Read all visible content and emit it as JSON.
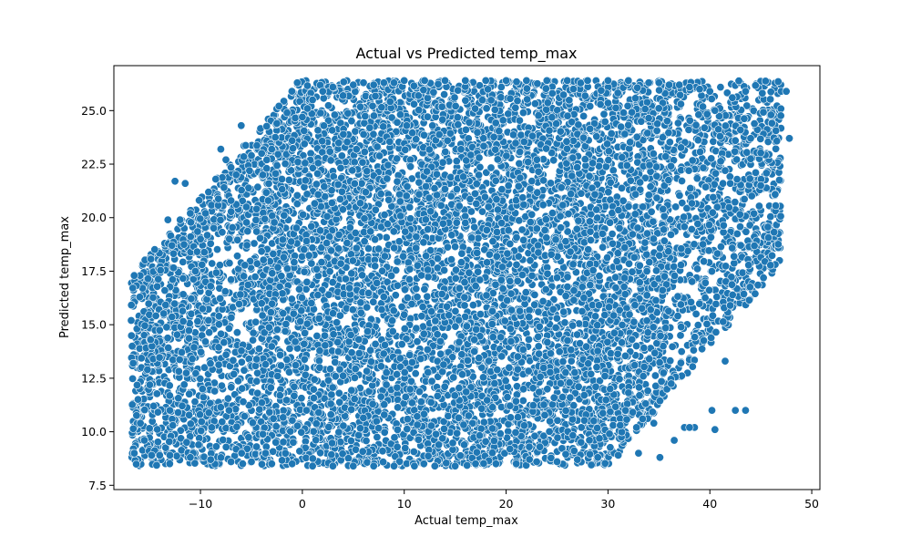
{
  "chart_data": {
    "type": "scatter",
    "title": "Actual vs Predicted temp_max",
    "xlabel": "Actual temp_max",
    "ylabel": "Predicted temp_max",
    "xlim": [
      -18.5,
      50.8
    ],
    "ylim": [
      7.3,
      27.1
    ],
    "xticks": [
      -10,
      0,
      10,
      20,
      30,
      40,
      50
    ],
    "yticks": [
      7.5,
      10.0,
      12.5,
      15.0,
      17.5,
      20.0,
      22.5,
      25.0
    ],
    "xtick_labels": [
      "−10",
      "0",
      "10",
      "20",
      "30",
      "40",
      "50"
    ],
    "ytick_labels": [
      "7.5",
      "10.0",
      "12.5",
      "15.0",
      "17.5",
      "20.0",
      "22.5",
      "25.0"
    ],
    "grid": false,
    "point_color": "#1f77b4",
    "series": [
      {
        "x": [
          -16.8,
          -16.7,
          -16.6,
          -16.5,
          -15.9,
          -15.8,
          -15.5,
          -15.2,
          -14.9,
          -14.6,
          -14.0,
          -13.5,
          -13.2,
          -12.8,
          -12.5,
          -12.0,
          -11.5,
          -11.0,
          -10.5,
          -10.0,
          -9.5,
          -9.0,
          -8.5,
          -8.0,
          -7.5,
          -7.0,
          -6.5,
          -6.0,
          -5.5,
          -5.0,
          -4.5,
          -4.0,
          -3.5,
          -3.0,
          -2.5,
          -2.0,
          -1.5,
          -1.0,
          -0.5,
          0.0,
          0.5,
          1.0,
          2.0,
          3.0,
          4.0,
          5.0,
          6.0,
          7.0,
          8.0,
          9.0,
          10.0,
          12.0,
          14.0,
          16.0,
          18.0,
          20.0,
          22.0,
          24.0,
          26.0,
          28.0,
          30.0,
          32.0,
          34.0,
          35.0,
          36.0,
          37.0,
          38.0,
          39.0,
          40.0,
          40.5,
          41.0,
          41.5,
          42.0,
          42.5,
          43.0,
          43.5,
          44.0,
          44.5,
          45.0,
          46.0,
          47.0,
          47.5,
          47.8,
          -14.8,
          -13.0,
          -11.0,
          -9.0,
          -7.0,
          -5.0,
          -3.0,
          -1.0,
          1.0,
          3.0,
          5.0,
          7.0,
          9.0,
          11.0,
          13.0,
          15.0,
          17.0,
          19.0,
          21.0,
          23.0,
          25.0,
          27.0,
          29.0,
          31.0,
          33.0,
          34.5,
          36.5,
          38.5,
          40.5,
          42.5,
          41.5,
          43.5,
          42.0,
          40.2,
          37.5,
          38.0,
          35.1,
          30.5,
          31.2,
          32.8,
          33.4,
          29.7,
          28.8,
          -12.2,
          -11.6,
          -10.8,
          -9.8,
          -8.6,
          -7.2,
          -5.8,
          -4.4,
          -2.2,
          -0.8,
          0.4,
          1.6,
          2.8
        ],
        "y": [
          15.2,
          14.0,
          13.2,
          9.0,
          10.4,
          13.0,
          9.6,
          12.9,
          14.3,
          11.2,
          8.9,
          16.6,
          19.9,
          18.7,
          21.7,
          19.9,
          21.6,
          20.2,
          17.5,
          19.0,
          20.2,
          16.8,
          21.8,
          23.2,
          22.7,
          20.8,
          22.0,
          24.3,
          20.5,
          22.9,
          20.4,
          23.0,
          22.3,
          23.2,
          24.4,
          21.8,
          24.9,
          23.6,
          26.3,
          24.7,
          25.1,
          25.5,
          25.9,
          26.1,
          25.7,
          26.2,
          26.3,
          26.2,
          26.3,
          26.3,
          26.4,
          26.4,
          26.4,
          26.4,
          26.4,
          26.4,
          26.4,
          26.4,
          26.4,
          26.4,
          26.4,
          26.4,
          26.3,
          26.3,
          26.2,
          26.2,
          26.1,
          26.0,
          25.9,
          25.0,
          23.8,
          22.2,
          21.6,
          23.6,
          24.1,
          25.9,
          23.7,
          22.1,
          21.5,
          24.8,
          25.9,
          25.9,
          23.7,
          8.9,
          8.9,
          8.8,
          8.7,
          8.6,
          8.6,
          8.5,
          8.5,
          8.4,
          8.4,
          8.4,
          8.4,
          8.4,
          8.4,
          8.4,
          8.4,
          8.5,
          8.5,
          8.5,
          8.6,
          8.6,
          8.7,
          8.8,
          8.9,
          9.0,
          10.4,
          9.6,
          10.2,
          10.1,
          11.0,
          13.3,
          11.0,
          15.9,
          11.0,
          10.2,
          10.2,
          8.8,
          10.3,
          10.3,
          10.2,
          10.6,
          12.6,
          12.1,
          10.9,
          12.2,
          13.4,
          12.0,
          11.9,
          11.0,
          11.4,
          11.8,
          11.7,
          12.1,
          11.0,
          10.9,
          10.8
        ]
      }
    ]
  }
}
